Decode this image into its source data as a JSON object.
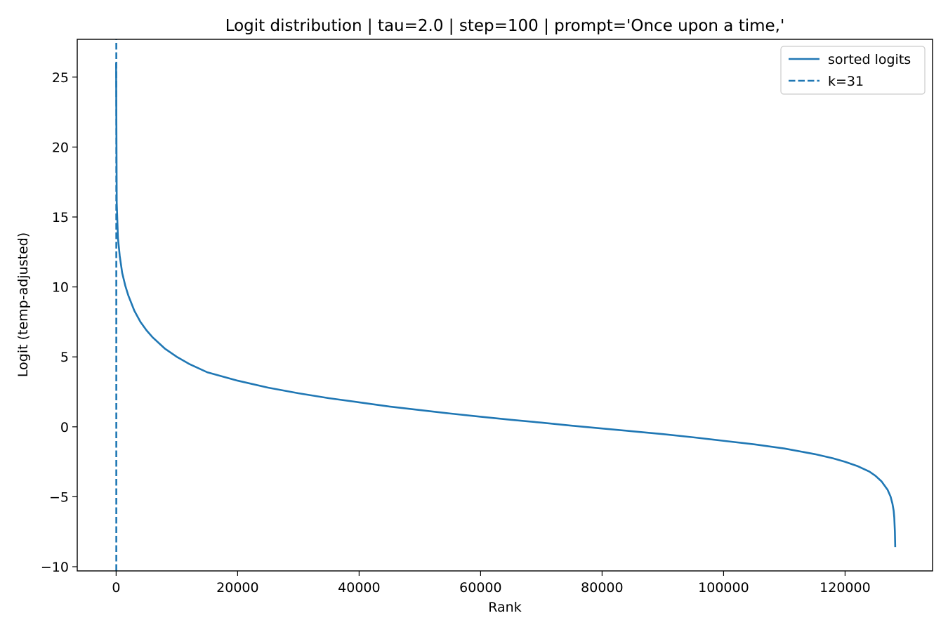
{
  "chart_data": {
    "type": "line",
    "title": "Logit distribution | tau=2.0 | step=100 | prompt='Once upon a time,'",
    "xlabel": "Rank",
    "ylabel": "Logit (temp-adjusted)",
    "xlim": [
      -6400,
      134400
    ],
    "ylim": [
      -10.3,
      27.7
    ],
    "xticks": [
      0,
      20000,
      40000,
      60000,
      80000,
      100000,
      120000
    ],
    "yticks": [
      -10,
      -5,
      0,
      5,
      10,
      15,
      20,
      25
    ],
    "ytick_labels": [
      "−10",
      "−5",
      "0",
      "5",
      "10",
      "15",
      "20",
      "25"
    ],
    "grid": false,
    "legend_position": "top-right",
    "series": [
      {
        "name": "sorted logits",
        "color": "#1f77b4",
        "style": "solid",
        "x": [
          0,
          100,
          300,
          600,
          1000,
          1500,
          2000,
          3000,
          4000,
          5000,
          6000,
          8000,
          10000,
          12000,
          15000,
          20000,
          25000,
          30000,
          35000,
          40000,
          45000,
          50000,
          55000,
          60000,
          65000,
          70000,
          75000,
          80000,
          85000,
          90000,
          95000,
          100000,
          105000,
          110000,
          115000,
          118000,
          120000,
          122000,
          124000,
          125000,
          126000,
          126500,
          127000,
          127500,
          127800,
          128000,
          128100,
          128200,
          128256
        ],
        "y": [
          26.0,
          16.0,
          13.5,
          12.2,
          11.0,
          10.1,
          9.4,
          8.3,
          7.5,
          6.9,
          6.4,
          5.6,
          5.0,
          4.5,
          3.9,
          3.3,
          2.8,
          2.4,
          2.05,
          1.75,
          1.45,
          1.2,
          0.95,
          0.72,
          0.5,
          0.3,
          0.08,
          -0.12,
          -0.32,
          -0.52,
          -0.75,
          -1.0,
          -1.25,
          -1.55,
          -1.95,
          -2.25,
          -2.5,
          -2.8,
          -3.2,
          -3.5,
          -3.9,
          -4.2,
          -4.5,
          -5.0,
          -5.5,
          -6.0,
          -6.5,
          -7.5,
          -8.6
        ]
      },
      {
        "name": "k=31",
        "color": "#1f77b4",
        "style": "dashed",
        "x": [
          31,
          31
        ],
        "y": [
          -10.3,
          27.7
        ]
      }
    ]
  }
}
